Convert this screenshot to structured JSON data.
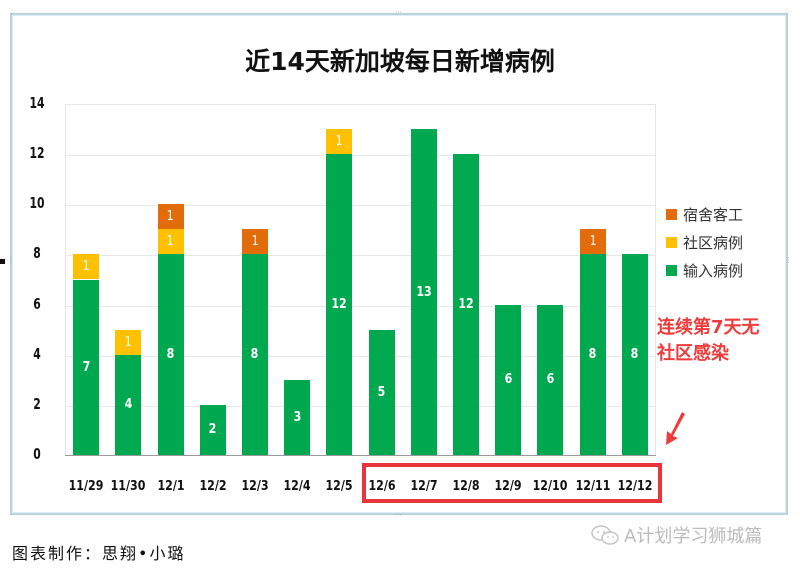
{
  "chart_data": {
    "type": "bar",
    "stacked": true,
    "title": "近14天新加坡每日新增病例",
    "xlabel": "",
    "ylabel": "",
    "ylim": [
      0,
      14
    ],
    "yticks": [
      0,
      2,
      4,
      6,
      8,
      10,
      12,
      14
    ],
    "grid": true,
    "legend_position": "right",
    "categories": [
      "11/29",
      "11/30",
      "12/1",
      "12/2",
      "12/3",
      "12/4",
      "12/5",
      "12/6",
      "12/7",
      "12/8",
      "12/9",
      "12/10",
      "12/11",
      "12/12"
    ],
    "series": [
      {
        "name": "输入病例",
        "color": "#00a94f",
        "values": [
          7,
          4,
          8,
          2,
          8,
          3,
          12,
          5,
          13,
          12,
          6,
          6,
          8,
          8
        ]
      },
      {
        "name": "社区病例",
        "color": "#ffc000",
        "values": [
          1,
          1,
          1,
          0,
          0,
          0,
          1,
          0,
          0,
          0,
          0,
          0,
          0,
          0
        ]
      },
      {
        "name": "宿舍客工",
        "color": "#e36c0a",
        "values": [
          0,
          0,
          1,
          0,
          1,
          0,
          0,
          0,
          0,
          0,
          0,
          0,
          1,
          0
        ]
      }
    ],
    "legend": [
      "宿舍客工",
      "社区病例",
      "输入病例"
    ],
    "annotations": [
      {
        "text": "连续第7天无社区感染",
        "color": "#ee3b3b"
      },
      {
        "type": "highlight-box",
        "range": [
          "12/6",
          "12/12"
        ],
        "color": "#e8343a"
      }
    ]
  },
  "title": "近14天新加坡每日新增病例",
  "legend": {
    "items": [
      {
        "label": "宿舍客工",
        "color": "#e36c0a"
      },
      {
        "label": "社区病例",
        "color": "#ffc000"
      },
      {
        "label": "输入病例",
        "color": "#00a94f"
      }
    ]
  },
  "annotation": {
    "line1": "连续第7天无",
    "line2": "社区感染"
  },
  "caption": "图表制作：思翔•小璐",
  "watermark": "A计划学习狮城篇"
}
